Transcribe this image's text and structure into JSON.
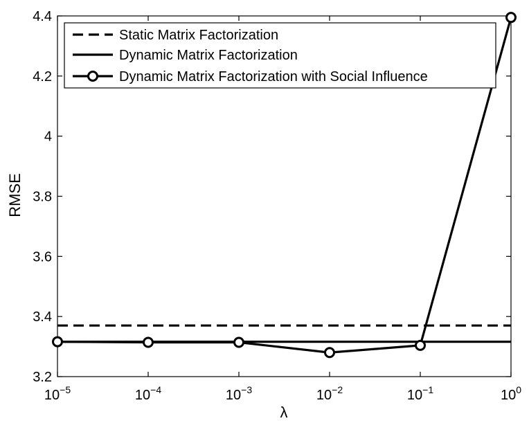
{
  "chart_data": {
    "type": "line",
    "xlabel": "λ",
    "ylabel": "RMSE",
    "xscale": "log",
    "xlim": [
      1e-05,
      1
    ],
    "ylim": [
      3.2,
      4.4
    ],
    "x_ticks": [
      {
        "value": 1e-05,
        "base": "10",
        "exp": "−5"
      },
      {
        "value": 0.0001,
        "base": "10",
        "exp": "−4"
      },
      {
        "value": 0.001,
        "base": "10",
        "exp": "−3"
      },
      {
        "value": 0.01,
        "base": "10",
        "exp": "−2"
      },
      {
        "value": 0.1,
        "base": "10",
        "exp": "−1"
      },
      {
        "value": 1,
        "base": "10",
        "exp": "0"
      }
    ],
    "y_ticks": [
      "3.2",
      "3.4",
      "3.6",
      "3.8",
      "4",
      "4.2",
      "4.4"
    ],
    "grid": false,
    "legend_position": "top",
    "series": [
      {
        "name": "Static Matrix Factorization",
        "style": "dashed",
        "marker": "none",
        "x": [
          1e-05,
          1
        ],
        "y": [
          3.37,
          3.37
        ]
      },
      {
        "name": "Dynamic Matrix Factorization",
        "style": "solid",
        "marker": "none",
        "x": [
          1e-05,
          1
        ],
        "y": [
          3.316,
          3.316
        ]
      },
      {
        "name": "Dynamic Matrix Factorization with Social Influence",
        "style": "solid",
        "marker": "circle",
        "x": [
          1e-05,
          0.0001,
          0.001,
          0.01,
          0.1,
          1
        ],
        "y": [
          3.316,
          3.314,
          3.314,
          3.28,
          3.304,
          4.395
        ]
      }
    ],
    "colors": {
      "line": "#000000",
      "background": "#ffffff"
    }
  }
}
